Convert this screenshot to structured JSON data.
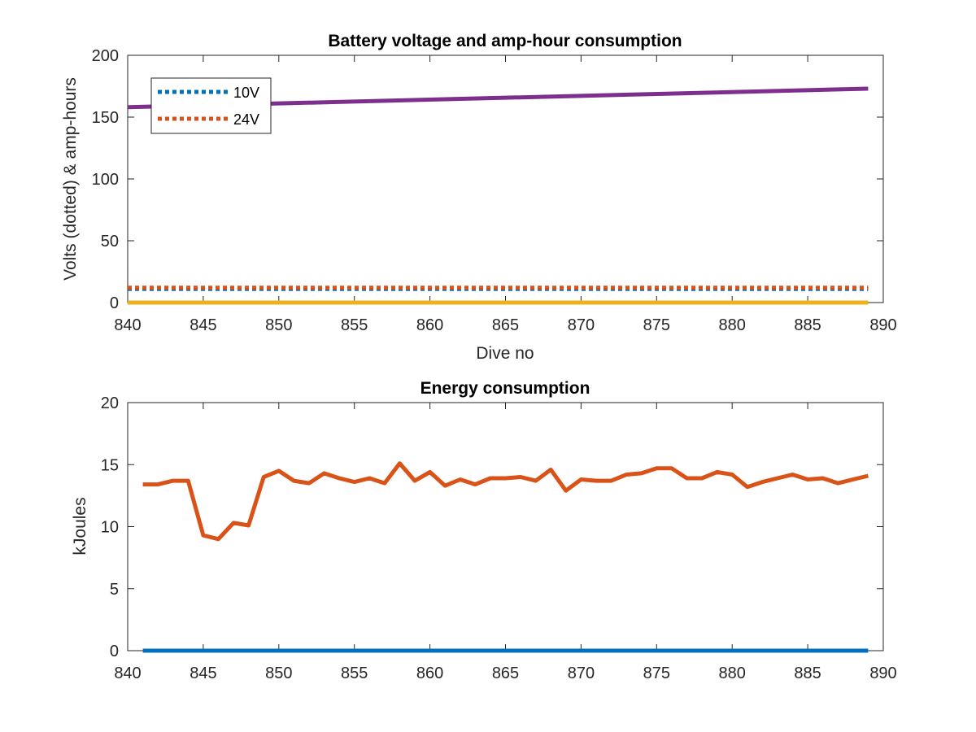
{
  "chart_data": [
    {
      "type": "line",
      "title": "Battery voltage and amp-hour consumption",
      "xlabel": "Dive no",
      "ylabel": "Volts (dotted) & amp-hours",
      "xlim": [
        840,
        890
      ],
      "ylim": [
        0,
        200
      ],
      "xticks": [
        840,
        845,
        850,
        855,
        860,
        865,
        870,
        875,
        880,
        885,
        890
      ],
      "yticks": [
        0,
        50,
        100,
        150,
        200
      ],
      "legend_position": "top-left",
      "series": [
        {
          "name": "10V",
          "color": "#0072BD",
          "style": "dotted",
          "x": [
            840,
            889
          ],
          "values": [
            11,
            11
          ]
        },
        {
          "name": "24V",
          "color": "#D95319",
          "style": "dotted",
          "x": [
            840,
            889
          ],
          "values": [
            12,
            12
          ]
        },
        {
          "color": "#EDB120",
          "style": "solid",
          "x": [
            840,
            889
          ],
          "values": [
            0,
            0
          ]
        },
        {
          "color": "#7E2F8E",
          "style": "solid",
          "x": [
            840,
            889
          ],
          "values": [
            158,
            173
          ]
        }
      ]
    },
    {
      "type": "line",
      "title": "Energy consumption",
      "xlabel": "",
      "ylabel": "kJoules",
      "xlim": [
        840,
        890
      ],
      "ylim": [
        0,
        20
      ],
      "xticks": [
        840,
        845,
        850,
        855,
        860,
        865,
        870,
        875,
        880,
        885,
        890
      ],
      "yticks": [
        0,
        5,
        10,
        15,
        20
      ],
      "series": [
        {
          "color": "#0072BD",
          "style": "solid",
          "x": [
            841,
            889
          ],
          "values": [
            0,
            0
          ]
        },
        {
          "color": "#D95319",
          "style": "solid",
          "x": [
            841,
            842,
            843,
            844,
            845,
            846,
            847,
            848,
            849,
            850,
            851,
            852,
            853,
            854,
            855,
            856,
            857,
            858,
            859,
            860,
            861,
            862,
            863,
            864,
            865,
            866,
            867,
            868,
            869,
            870,
            871,
            872,
            873,
            874,
            875,
            876,
            877,
            878,
            879,
            880,
            881,
            882,
            883,
            884,
            885,
            886,
            887,
            888,
            889
          ],
          "values": [
            13.4,
            13.4,
            13.7,
            13.7,
            9.3,
            9.0,
            10.3,
            10.1,
            14.0,
            14.5,
            13.7,
            13.5,
            14.3,
            13.9,
            13.6,
            13.9,
            13.5,
            15.1,
            13.7,
            14.4,
            13.3,
            13.8,
            13.4,
            13.9,
            13.9,
            14.0,
            13.7,
            14.6,
            12.9,
            13.8,
            13.7,
            13.7,
            14.2,
            14.3,
            14.7,
            14.7,
            13.9,
            13.9,
            14.4,
            14.2,
            13.2,
            13.6,
            13.9,
            14.2,
            13.8,
            13.9,
            13.5,
            13.8,
            14.1
          ]
        }
      ]
    }
  ]
}
